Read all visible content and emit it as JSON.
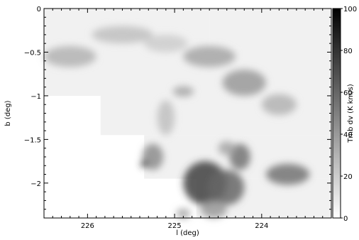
{
  "chart_data": {
    "type": "heatmap",
    "xlabel": "l (deg)",
    "ylabel": "b (deg)",
    "colorbar_label": "Tmb dv (K km/s)",
    "xlim": [
      226.5,
      223.2
    ],
    "ylim": [
      -2.4,
      0
    ],
    "x_ticks": [
      {
        "value": 226,
        "label": "226"
      },
      {
        "value": 225,
        "label": "225"
      },
      {
        "value": 224,
        "label": "224"
      }
    ],
    "y_ticks": [
      {
        "value": 0,
        "label": "0"
      },
      {
        "value": -0.5,
        "label": "−0.5"
      },
      {
        "value": -1,
        "label": "−1"
      },
      {
        "value": -1.5,
        "label": "−1.5"
      },
      {
        "value": -2,
        "label": "−2"
      }
    ],
    "colorbar_range": [
      0,
      100
    ],
    "colorbar_ticks": [
      {
        "value": 0,
        "label": "0"
      },
      {
        "value": 20,
        "label": "20"
      },
      {
        "value": 40,
        "label": "40"
      },
      {
        "value": 60,
        "label": "60"
      },
      {
        "value": 80,
        "label": "80"
      },
      {
        "value": 100,
        "label": "100"
      }
    ],
    "colormap": "white-to-black grayscale",
    "survey_coverage": [
      {
        "l": [
          226.5,
          224.6
        ],
        "b": [
          -1.0,
          0
        ]
      },
      {
        "l": [
          224.6,
          223.2
        ],
        "b": [
          -0.45,
          0
        ]
      },
      {
        "l": [
          226.5,
          225.85
        ],
        "b": [
          -1.0,
          -0.45
        ]
      },
      {
        "l": [
          225.85,
          223.2
        ],
        "b": [
          -1.45,
          -0.45
        ]
      },
      {
        "l": [
          225.35,
          223.2
        ],
        "b": [
          -1.95,
          -1.45
        ]
      },
      {
        "l": [
          224.75,
          223.2
        ],
        "b": [
          -2.4,
          -1.95
        ]
      }
    ],
    "emission_features": [
      {
        "l": 226.2,
        "b": -0.55,
        "strength": 30,
        "sl": 0.3,
        "sb": 0.12
      },
      {
        "l": 225.6,
        "b": -0.3,
        "strength": 25,
        "sl": 0.35,
        "sb": 0.1
      },
      {
        "l": 225.1,
        "b": -0.4,
        "strength": 20,
        "sl": 0.25,
        "sb": 0.1
      },
      {
        "l": 224.6,
        "b": -0.55,
        "strength": 35,
        "sl": 0.3,
        "sb": 0.12
      },
      {
        "l": 224.2,
        "b": -0.85,
        "strength": 40,
        "sl": 0.25,
        "sb": 0.15
      },
      {
        "l": 223.8,
        "b": -1.1,
        "strength": 30,
        "sl": 0.2,
        "sb": 0.12
      },
      {
        "l": 224.9,
        "b": -0.95,
        "strength": 35,
        "sl": 0.12,
        "sb": 0.06
      },
      {
        "l": 225.1,
        "b": -1.25,
        "strength": 25,
        "sl": 0.1,
        "sb": 0.2
      },
      {
        "l": 225.25,
        "b": -1.7,
        "strength": 45,
        "sl": 0.12,
        "sb": 0.15
      },
      {
        "l": 225.35,
        "b": -1.78,
        "strength": 85,
        "sl": 0.04,
        "sb": 0.04
      },
      {
        "l": 224.65,
        "b": -2.0,
        "strength": 75,
        "sl": 0.25,
        "sb": 0.25
      },
      {
        "l": 224.4,
        "b": -2.05,
        "strength": 60,
        "sl": 0.2,
        "sb": 0.2
      },
      {
        "l": 224.25,
        "b": -1.7,
        "strength": 55,
        "sl": 0.12,
        "sb": 0.15
      },
      {
        "l": 223.7,
        "b": -1.9,
        "strength": 55,
        "sl": 0.25,
        "sb": 0.12
      },
      {
        "l": 224.4,
        "b": -1.6,
        "strength": 35,
        "sl": 0.1,
        "sb": 0.08
      },
      {
        "l": 224.55,
        "b": -2.3,
        "strength": 40,
        "sl": 0.15,
        "sb": 0.1
      },
      {
        "l": 224.9,
        "b": -2.35,
        "strength": 35,
        "sl": 0.08,
        "sb": 0.06
      }
    ]
  }
}
